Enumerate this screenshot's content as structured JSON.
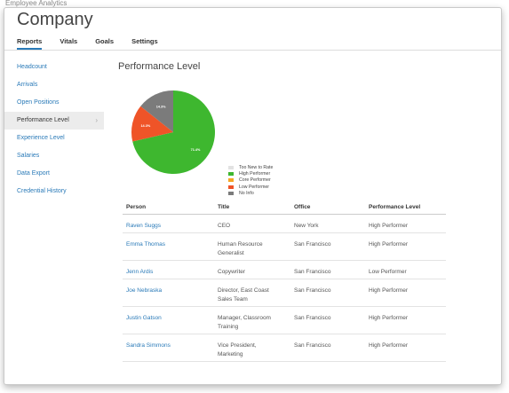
{
  "top_cut_text": "Employee Analytics",
  "app": {
    "title": "Company"
  },
  "tabs": [
    {
      "label": "Reports",
      "active": true
    },
    {
      "label": "Vitals",
      "active": false
    },
    {
      "label": "Goals",
      "active": false
    },
    {
      "label": "Settings",
      "active": false
    }
  ],
  "sidebar": {
    "items": [
      {
        "label": "Headcount",
        "active": false
      },
      {
        "label": "Arrivals",
        "active": false
      },
      {
        "label": "Open Positions",
        "active": false
      },
      {
        "label": "Performance Level",
        "active": true,
        "icon": "chevron-right-icon"
      },
      {
        "label": "Experience Level",
        "active": false
      },
      {
        "label": "Salaries",
        "active": false
      },
      {
        "label": "Data Export",
        "active": false
      },
      {
        "label": "Credential History",
        "active": false
      }
    ]
  },
  "main": {
    "title": "Performance Level"
  },
  "chart_data": {
    "type": "pie",
    "slices": [
      {
        "label": "High Performer",
        "value": 71.4,
        "display": "71.4%",
        "color": "#3eb72f"
      },
      {
        "label": "Low Performer",
        "value": 14.3,
        "display": "14.3%",
        "color": "#ef5428"
      },
      {
        "label": "No Info",
        "value": 14.3,
        "display": "14.3%",
        "color": "#7b7b7b"
      }
    ],
    "legend": [
      {
        "label": "Too New to Rate",
        "color": "#e2e2e2"
      },
      {
        "label": "High Performer",
        "color": "#3eb72f"
      },
      {
        "label": "Core Performer",
        "color": "#f5a623"
      },
      {
        "label": "Low Performer",
        "color": "#ef5428"
      },
      {
        "label": "No Info",
        "color": "#7b7b7b"
      }
    ],
    "legend_position": "right"
  },
  "table": {
    "columns": [
      "Person",
      "Title",
      "Office",
      "Performance Level"
    ],
    "rows": [
      {
        "person": "Raven Suggs",
        "title": [
          "CEO"
        ],
        "office": "New York",
        "level": "High Performer"
      },
      {
        "person": "Emma Thomas",
        "title": [
          "Human Resource",
          "Generalist"
        ],
        "office": "San Francisco",
        "level": "High Performer"
      },
      {
        "person": "Jenn Ardis",
        "title": [
          "Copywriter"
        ],
        "office": "San Francisco",
        "level": "Low Performer"
      },
      {
        "person": "Joe Nebraska",
        "title": [
          "Director, East Coast",
          "Sales Team"
        ],
        "office": "San Francisco",
        "level": "High Performer"
      },
      {
        "person": "Justin Gatson",
        "title": [
          "Manager, Classroom",
          "Training"
        ],
        "office": "San Francisco",
        "level": "High Performer"
      },
      {
        "person": "Sandra Simmons",
        "title": [
          "Vice President,",
          "Marketing"
        ],
        "office": "San Francisco",
        "level": "High Performer"
      }
    ]
  }
}
